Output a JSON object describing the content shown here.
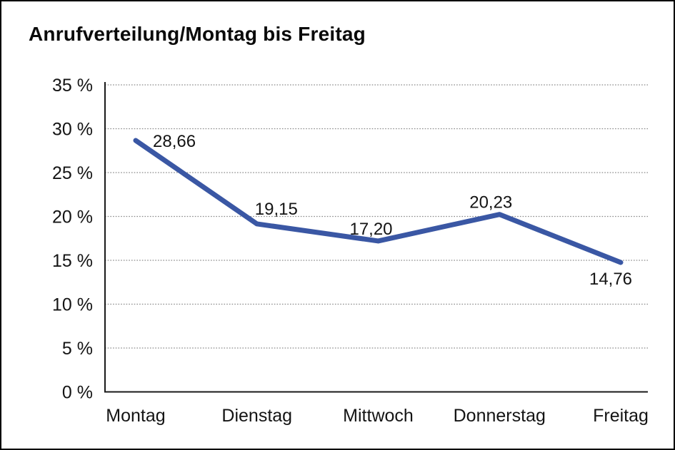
{
  "chart_data": {
    "type": "line",
    "title": "Anrufverteilung/Montag bis Freitag",
    "categories": [
      "Montag",
      "Dienstag",
      "Mittwoch",
      "Donnerstag",
      "Freitag"
    ],
    "series": [
      {
        "name": "Anrufverteilung",
        "values": [
          28.66,
          19.15,
          17.2,
          20.23,
          14.76
        ],
        "value_labels": [
          "28,66",
          "19,15",
          "17,20",
          "20,23",
          "14,76"
        ],
        "color": "#3A57A4"
      }
    ],
    "xlabel": "",
    "ylabel": "",
    "ylim": [
      0,
      35
    ],
    "yticks": [
      {
        "value": 35,
        "label": "35 %"
      },
      {
        "value": 30,
        "label": "30 %"
      },
      {
        "value": 25,
        "label": "25 %"
      },
      {
        "value": 20,
        "label": "20 %"
      },
      {
        "value": 15,
        "label": "15 %"
      },
      {
        "value": 10,
        "label": "10 %"
      },
      {
        "value": 5,
        "label": "5 %"
      },
      {
        "value": 0,
        "label": "0 %"
      }
    ],
    "grid": "horizontal-dotted",
    "legend": "none",
    "gridline_color": "#8a8a8a",
    "axis_color": "#1a1a1a"
  }
}
